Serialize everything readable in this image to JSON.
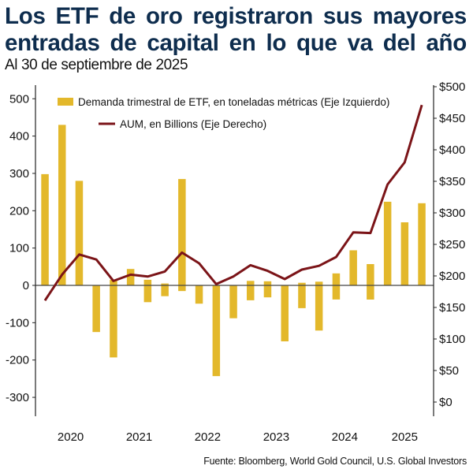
{
  "header": {
    "title_line1": "Los ETF de oro registraron sus mayores",
    "title_line2": "entradas de capital en lo que va del año",
    "subtitle": "Al 30 de septiembre de 2025"
  },
  "source": "Fuente: Bloomberg, World Gold Council, U.S. Global Investors",
  "colors": {
    "title": "#0E2D4E",
    "bars": "#E3B82B",
    "line": "#7B1418",
    "axis": "#222222"
  },
  "chart_data": {
    "type": "bar+line",
    "title": "Los ETF de oro registraron sus mayores entradas de capital en lo que va del año",
    "subtitle": "Al 30 de septiembre de 2025",
    "x": [
      "2020 Q1",
      "2020 Q2",
      "2020 Q3",
      "2020 Q4",
      "2021 Q1",
      "2021 Q2",
      "2021 Q3",
      "2021 Q4",
      "2022 Q1",
      "2022 Q2",
      "2022 Q3",
      "2022 Q4",
      "2023 Q1",
      "2023 Q2",
      "2023 Q3",
      "2023 Q4",
      "2024 Q1",
      "2024 Q2",
      "2024 Q3",
      "2024 Q4",
      "2025 Q1",
      "2025 Q2",
      "2025 Q3"
    ],
    "year_labels": [
      "2020",
      "2021",
      "2022",
      "2023",
      "2024",
      "2025"
    ],
    "series": [
      {
        "name": "Demanda trimestral de ETF, en toneladas métricas (Eje Izquierdo)",
        "type": "bar",
        "axis": "left",
        "note": "bars span from 'high' to 'low'; many quarters show both positive and negative components",
        "high": [
          298,
          430,
          280,
          0,
          15,
          44,
          15,
          5,
          285,
          0,
          0,
          0,
          12,
          11,
          0,
          7,
          10,
          32,
          94,
          57,
          224,
          169,
          220
        ],
        "low": [
          0,
          0,
          0,
          -125,
          -193,
          0,
          -45,
          -29,
          -15,
          -49,
          -243,
          -88,
          -40,
          -32,
          -150,
          -61,
          -121,
          -38,
          0,
          -38,
          0,
          0,
          0
        ]
      },
      {
        "name": "AUM, en Billions (Eje Derecho)",
        "type": "line",
        "axis": "right",
        "values": [
          161,
          202,
          234,
          226,
          192,
          202,
          199,
          207,
          237,
          220,
          187,
          199,
          217,
          208,
          195,
          210,
          216,
          230,
          269,
          268,
          345,
          380,
          471
        ]
      }
    ],
    "y_left": {
      "ylim": [
        -350,
        530
      ],
      "ticks": [
        500,
        400,
        300,
        200,
        100,
        0,
        -100,
        -200,
        -300
      ],
      "tick_labels": [
        "500",
        "400",
        "300",
        "200",
        "100",
        "0",
        "-100",
        "-200",
        "-300"
      ]
    },
    "y_right": {
      "ylim": [
        -20,
        520
      ],
      "ticks": [
        500,
        450,
        400,
        350,
        300,
        250,
        200,
        150,
        100,
        50,
        0
      ],
      "tick_labels": [
        "$500",
        "$450",
        "$400",
        "$350",
        "$300",
        "$250",
        "$200",
        "$150",
        "$100",
        "$50",
        "$0"
      ]
    },
    "legend": {
      "placement": "top",
      "items": [
        {
          "label": "Demanda trimestral de ETF, en toneladas métricas (Eje Izquierdo)",
          "symbol": "bar"
        },
        {
          "label": "AUM, en Billions (Eje Derecho)",
          "symbol": "line"
        }
      ]
    },
    "grid": false
  }
}
